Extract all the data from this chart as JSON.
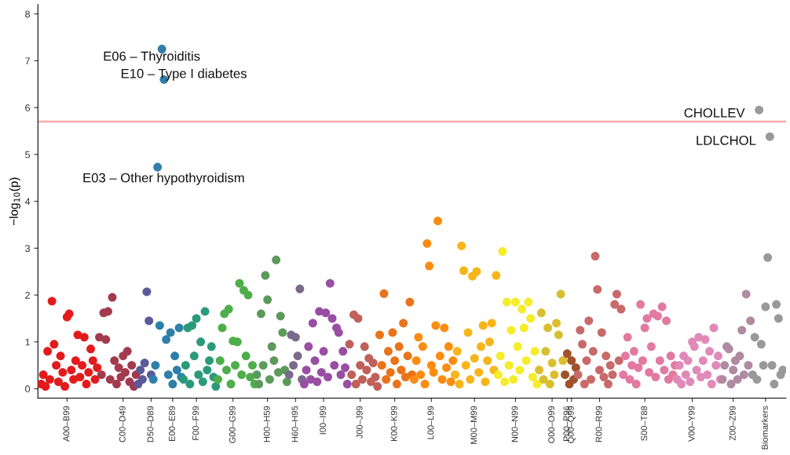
{
  "chart_data": {
    "type": "scatter",
    "ylabel": "−log$_{10}$(p)",
    "marker": "circle",
    "grid": false,
    "legend": false,
    "ylim": [
      -0.2,
      8.2
    ],
    "yticks": [
      0,
      1,
      2,
      3,
      4,
      5,
      6,
      7,
      8
    ],
    "ref_lines": [
      {
        "axis": "y",
        "value": 5.7,
        "color": "#ffaaaa"
      }
    ],
    "annotations": [
      "E06 – Thyroiditis",
      "E10 – Type I diabetes",
      "E03 – Other hypothyroidism",
      "CHOLLEV",
      "LDLCHOL"
    ],
    "categories": [
      null,
      null,
      null,
      null,
      null,
      null,
      null,
      null,
      null,
      null,
      null,
      null,
      "A00–B99",
      null,
      null,
      null,
      null,
      null,
      null,
      null,
      null,
      null,
      null,
      null,
      null,
      null,
      null,
      null,
      null,
      null,
      null,
      null,
      null,
      null,
      null,
      null,
      null,
      null,
      "C00–D49",
      null,
      null,
      null,
      null,
      null,
      null,
      null,
      null,
      null,
      null,
      null,
      null,
      "D50–D89",
      null,
      null,
      null,
      null,
      null,
      null,
      null,
      null,
      null,
      "E00–E89",
      null,
      null,
      null,
      null,
      null,
      null,
      null,
      null,
      null,
      null,
      "F00–F99",
      null,
      null,
      null,
      null,
      null,
      null,
      null,
      null,
      null,
      null,
      null,
      null,
      null,
      null,
      null,
      null,
      "G00–G99",
      null,
      null,
      null,
      null,
      null,
      null,
      null,
      null,
      null,
      null,
      null,
      null,
      null,
      null,
      null,
      "H00–H59",
      null,
      null,
      null,
      null,
      null,
      null,
      null,
      null,
      null,
      null,
      null,
      null,
      "H60–H95",
      null,
      null,
      null,
      null,
      null,
      null,
      null,
      null,
      null,
      null,
      null,
      null,
      "I00–I99",
      null,
      null,
      null,
      null,
      null,
      null,
      null,
      null,
      null,
      null,
      null,
      null,
      null,
      null,
      null,
      null,
      "J00–J99",
      null,
      null,
      null,
      null,
      null,
      null,
      null,
      null,
      null,
      null,
      null,
      null,
      null,
      null,
      null,
      "K00–K99",
      null,
      null,
      null,
      null,
      null,
      null,
      null,
      null,
      null,
      null,
      null,
      null,
      null,
      null,
      null,
      null,
      "L00–L99",
      null,
      null,
      null,
      null,
      null,
      null,
      null,
      null,
      null,
      null,
      null,
      null,
      null,
      null,
      null,
      null,
      null,
      null,
      null,
      "M00–M99",
      null,
      null,
      null,
      null,
      null,
      null,
      null,
      null,
      null,
      null,
      null,
      null,
      null,
      null,
      null,
      null,
      null,
      null,
      "N00–N99",
      null,
      null,
      null,
      null,
      null,
      null,
      null,
      null,
      null,
      null,
      null,
      null,
      null,
      null,
      null,
      null,
      "O00–O99",
      null,
      null,
      null,
      null,
      null,
      null,
      "P00–P96",
      null,
      "Q00–Q99",
      null,
      null,
      null,
      null,
      null,
      null,
      null,
      null,
      null,
      null,
      null,
      null,
      "R00–R99",
      null,
      null,
      null,
      null,
      null,
      null,
      null,
      null,
      null,
      null,
      null,
      null,
      null,
      null,
      null,
      null,
      null,
      null,
      null,
      null,
      "S00–T88",
      null,
      null,
      null,
      null,
      null,
      null,
      null,
      null,
      null,
      null,
      null,
      null,
      null,
      null,
      null,
      null,
      null,
      null,
      null,
      null,
      null,
      "V00–Y99",
      null,
      null,
      null,
      null,
      null,
      null,
      null,
      null,
      null,
      null,
      null,
      null,
      null,
      null,
      null,
      null,
      null,
      null,
      "Z00–Z99",
      null,
      null,
      null,
      null,
      null,
      null,
      null,
      null,
      null,
      null,
      null,
      null,
      null,
      null,
      "Biomarkers",
      null,
      null,
      null,
      null,
      null,
      null,
      null,
      null
    ],
    "series": [
      {
        "values": [
          0.1,
          0.3,
          0.05,
          0.8,
          0.2,
          1.87,
          0.95,
          0.5,
          0.15,
          0.7,
          0.35,
          0.05,
          1.53,
          1.6,
          0.4,
          0.2,
          0.6,
          1.15,
          0.25,
          0.5,
          1.1,
          0.1,
          0.35,
          0.85,
          0.6,
          0.2,
          0.45,
          1.1,
          0.3,
          1.62,
          1.05,
          1.65,
          0.2,
          1.95,
          0.6,
          0.1,
          0.45,
          0.25,
          0.7,
          0.35,
          0.8,
          0.15,
          0.5,
          0.05,
          0.3,
          0.1,
          0.4,
          0.2,
          0.55,
          2.07,
          1.45,
          0.3,
          0.2,
          0.5,
          4.73,
          1.35,
          7.25,
          6.6,
          1.05,
          0.3,
          1.2,
          0.1,
          0.7,
          0.4,
          1.3,
          0.25,
          0.2,
          0.5,
          1.3,
          0.1,
          1.35,
          0.7,
          1.5,
          0.3,
          1.0,
          0.15,
          1.65,
          0.4,
          0.6,
          0.9,
          0.25,
          0.05,
          0.2,
          0.6,
          1.3,
          1.6,
          0.4,
          1.7,
          0.1,
          1.02,
          0.5,
          1.0,
          2.25,
          0.3,
          2.1,
          0.7,
          2.0,
          0.25,
          0.5,
          0.1,
          0.3,
          0.1,
          1.6,
          0.5,
          2.42,
          1.9,
          0.2,
          0.9,
          0.6,
          2.75,
          0.35,
          1.55,
          1.2,
          0.4,
          0.15,
          0.3,
          1.15,
          0.5,
          1.1,
          0.7,
          2.13,
          0.2,
          0.1,
          0.4,
          0.9,
          0.2,
          1.4,
          0.6,
          0.15,
          1.65,
          0.35,
          0.8,
          1.62,
          0.25,
          2.25,
          1.5,
          0.5,
          1.3,
          1.2,
          0.3,
          0.8,
          0.45,
          0.1,
          0.95,
          0.3,
          1.58,
          0.1,
          1.5,
          0.5,
          0.2,
          0.9,
          0.4,
          0.65,
          0.15,
          0.55,
          0.25,
          0.05,
          1.15,
          0.5,
          2.03,
          0.2,
          0.8,
          0.35,
          1.2,
          0.6,
          0.1,
          0.9,
          0.4,
          1.4,
          0.25,
          0.7,
          1.85,
          0.3,
          0.2,
          0.6,
          1.1,
          0.3,
          0.9,
          0.1,
          3.1,
          2.62,
          0.5,
          0.35,
          1.35,
          3.58,
          0.7,
          0.2,
          1.3,
          0.45,
          0.9,
          0.15,
          0.6,
          0.3,
          0.8,
          0.1,
          3.05,
          2.52,
          0.5,
          1.2,
          0.2,
          2.4,
          0.65,
          2.5,
          0.35,
          0.9,
          1.35,
          0.15,
          0.6,
          1.0,
          1.4,
          0.4,
          2.42,
          0.3,
          0.7,
          2.93,
          0.15,
          1.85,
          0.5,
          1.25,
          0.2,
          1.85,
          0.9,
          0.4,
          1.7,
          1.3,
          0.6,
          1.85,
          1.5,
          0.25,
          0.8,
          0.1,
          0.4,
          1.62,
          0.2,
          0.8,
          1.3,
          0.1,
          0.55,
          0.3,
          1.4,
          1.15,
          2.02,
          0.6,
          0.3,
          0.75,
          0.1,
          0.6,
          0.2,
          0.45,
          0.3,
          1.25,
          0.95,
          0.1,
          0.6,
          1.45,
          0.2,
          0.8,
          2.83,
          2.12,
          0.4,
          1.2,
          0.25,
          0.7,
          0.1,
          0.5,
          0.3,
          1.8,
          2.02,
          0.6,
          1.7,
          0.3,
          0.7,
          1.1,
          0.2,
          0.5,
          0.8,
          0.1,
          0.45,
          1.8,
          0.6,
          1.3,
          1.5,
          0.35,
          0.9,
          1.6,
          0.25,
          1.55,
          0.6,
          1.75,
          0.4,
          1.45,
          0.2,
          0.7,
          0.3,
          0.5,
          0.2,
          0.5,
          0.1,
          0.7,
          0.3,
          0.6,
          0.15,
          1.0,
          0.9,
          0.4,
          1.1,
          0.25,
          0.6,
          1.05,
          0.3,
          0.8,
          0.1,
          1.3,
          0.5,
          0.7,
          0.2,
          0.2,
          0.5,
          0.9,
          0.85,
          0.1,
          0.4,
          0.6,
          0.2,
          0.7,
          1.25,
          0.3,
          2.02,
          0.5,
          1.45,
          0.3,
          1.1,
          0.2,
          5.95,
          0.95,
          0.5,
          1.75,
          2.8,
          5.38,
          0.5,
          0.1,
          1.8,
          1.5,
          0.3,
          0.4
        ],
        "colors": [
          "#e31a1c",
          "#e31a1c",
          "#e31a1c",
          "#e31a1c",
          "#e31a1c",
          "#e31a1c",
          "#e31a1c",
          "#e31a1c",
          "#e31a1c",
          "#e31a1c",
          "#e31a1c",
          "#e31a1c",
          "#e31a1c",
          "#e31a1c",
          "#e31a1c",
          "#e31a1c",
          "#e31a1c",
          "#e31a1c",
          "#e31a1c",
          "#e31a1c",
          "#e31a1c",
          "#e31a1c",
          "#e31a1c",
          "#e31a1c",
          "#e31a1c",
          "#e31a1c",
          "#e31a1c",
          "#a33b4e",
          "#a33b4e",
          "#a33b4e",
          "#a33b4e",
          "#a33b4e",
          "#a33b4e",
          "#a33b4e",
          "#a33b4e",
          "#a33b4e",
          "#a33b4e",
          "#a33b4e",
          "#a33b4e",
          "#a33b4e",
          "#a33b4e",
          "#a33b4e",
          "#a33b4e",
          "#a33b4e",
          "#a33b4e",
          "#5a5a9a",
          "#5a5a9a",
          "#5a5a9a",
          "#5a5a9a",
          "#5a5a9a",
          "#5a5a9a",
          "#5a5a9a",
          "#2f7fa8",
          "#2f7fa8",
          "#2f7fa8",
          "#2f7fa8",
          "#2f7fa8",
          "#2f7fa8",
          "#2f7fa8",
          "#2f7fa8",
          "#2f7fa8",
          "#2f7fa8",
          "#2f7fa8",
          "#2f7fa8",
          "#2f7fa8",
          "#2f7fa8",
          "#2a9a7a",
          "#2a9a7a",
          "#2a9a7a",
          "#2a9a7a",
          "#2a9a7a",
          "#2a9a7a",
          "#2a9a7a",
          "#2a9a7a",
          "#2a9a7a",
          "#2a9a7a",
          "#2a9a7a",
          "#2a9a7a",
          "#2a9a7a",
          "#2a9a7a",
          "#2a9a7a",
          "#2a9a7a",
          "#4dae4a",
          "#4dae4a",
          "#4dae4a",
          "#4dae4a",
          "#4dae4a",
          "#4dae4a",
          "#4dae4a",
          "#4dae4a",
          "#4dae4a",
          "#4dae4a",
          "#4dae4a",
          "#4dae4a",
          "#4dae4a",
          "#4dae4a",
          "#4dae4a",
          "#4dae4a",
          "#4dae4a",
          "#4dae4a",
          "#5c9a5c",
          "#5c9a5c",
          "#5c9a5c",
          "#5c9a5c",
          "#5c9a5c",
          "#5c9a5c",
          "#5c9a5c",
          "#5c9a5c",
          "#5c9a5c",
          "#5c9a5c",
          "#5c9a5c",
          "#5c9a5c",
          "#5c9a5c",
          "#5c9a5c",
          "#5c9a5c",
          "#7a6a8a",
          "#7a6a8a",
          "#7a6a8a",
          "#7a6a8a",
          "#7a6a8a",
          "#7a6a8a",
          "#7a6a8a",
          "#984ea3",
          "#984ea3",
          "#984ea3",
          "#984ea3",
          "#984ea3",
          "#984ea3",
          "#984ea3",
          "#984ea3",
          "#984ea3",
          "#984ea3",
          "#984ea3",
          "#984ea3",
          "#984ea3",
          "#984ea3",
          "#984ea3",
          "#984ea3",
          "#984ea3",
          "#984ea3",
          "#984ea3",
          "#984ea3",
          "#984ea3",
          "#c0605a",
          "#c0605a",
          "#c0605a",
          "#c0605a",
          "#c0605a",
          "#c0605a",
          "#c0605a",
          "#c0605a",
          "#c0605a",
          "#c0605a",
          "#c0605a",
          "#c0605a",
          "#c0605a",
          "#c0605a",
          "#e8731a",
          "#e8731a",
          "#e8731a",
          "#e8731a",
          "#e8731a",
          "#e8731a",
          "#e8731a",
          "#e8731a",
          "#e8731a",
          "#e8731a",
          "#e8731a",
          "#e8731a",
          "#e8731a",
          "#e8731a",
          "#e8731a",
          "#e8731a",
          "#fb8c0f",
          "#fb8c0f",
          "#fb8c0f",
          "#fb8c0f",
          "#fb8c0f",
          "#fb8c0f",
          "#fb8c0f",
          "#fb8c0f",
          "#fb8c0f",
          "#fb8c0f",
          "#fb8c0f",
          "#fb8c0f",
          "#fb8c0f",
          "#fb8c0f",
          "#fb8c0f",
          "#fb8c0f",
          "#fb8c0f",
          "#fb8c0f",
          "#fb8c0f",
          "#f7b51a",
          "#f7b51a",
          "#f7b51a",
          "#f7b51a",
          "#f7b51a",
          "#f7b51a",
          "#f7b51a",
          "#f7b51a",
          "#f7b51a",
          "#f7b51a",
          "#f7b51a",
          "#f7b51a",
          "#f7b51a",
          "#f7b51a",
          "#f7b51a",
          "#f7b51a",
          "#f7b51a",
          "#f7b51a",
          "#f7b51a",
          "#f7b51a",
          "#f5ec2a",
          "#f5ec2a",
          "#f5ec2a",
          "#f5ec2a",
          "#f5ec2a",
          "#f5ec2a",
          "#f5ec2a",
          "#f5ec2a",
          "#f5ec2a",
          "#f5ec2a",
          "#f5ec2a",
          "#f5ec2a",
          "#f5ec2a",
          "#f5ec2a",
          "#f5ec2a",
          "#f5ec2a",
          "#f5ec2a",
          "#f5ec2a",
          "#f5ec2a",
          "#d9bf30",
          "#d9bf30",
          "#d9bf30",
          "#d9bf30",
          "#d9bf30",
          "#d9bf30",
          "#d9bf30",
          "#d9bf30",
          "#d9bf30",
          "#d9bf30",
          "#d9bf30",
          "#d9bf30",
          "#a0522d",
          "#a0522d",
          "#a0522d",
          "#a0522d",
          "#a0522d",
          "#a0522d",
          "#c86a6a",
          "#c86a6a",
          "#c86a6a",
          "#c86a6a",
          "#c86a6a",
          "#c86a6a",
          "#c86a6a",
          "#c86a6a",
          "#c86a6a",
          "#c86a6a",
          "#c86a6a",
          "#c86a6a",
          "#c86a6a",
          "#c86a6a",
          "#c86a6a",
          "#c86a6a",
          "#c86a6a",
          "#c86a6a",
          "#c86a6a",
          "#c86a6a",
          "#c86a6a",
          "#e27aa0",
          "#e27aa0",
          "#e27aa0",
          "#e27aa0",
          "#e27aa0",
          "#e27aa0",
          "#e27aa0",
          "#e27aa0",
          "#e27aa0",
          "#e27aa0",
          "#e27aa0",
          "#e27aa0",
          "#e27aa0",
          "#e27aa0",
          "#e27aa0",
          "#e27aa0",
          "#e27aa0",
          "#e27aa0",
          "#e27aa0",
          "#e27aa0",
          "#e27aa0",
          "#e27aa0",
          "#e27aa0",
          "#e27aa0",
          "#e27aa0",
          "#e08ab8",
          "#e08ab8",
          "#e08ab8",
          "#e08ab8",
          "#e08ab8",
          "#e08ab8",
          "#e08ab8",
          "#e08ab8",
          "#e08ab8",
          "#e08ab8",
          "#e08ab8",
          "#e08ab8",
          "#e08ab8",
          "#e08ab8",
          "#e08ab8",
          "#e08ab8",
          "#e08ab8",
          "#e08ab8",
          "#e08ab8",
          "#e08ab8",
          "#e08ab8",
          "#b08aa0",
          "#b08aa0",
          "#b08aa0",
          "#b08aa0",
          "#b08aa0",
          "#b08aa0",
          "#b08aa0",
          "#b08aa0",
          "#b08aa0",
          "#b08aa0",
          "#b08aa0",
          "#b08aa0",
          "#b08aa0",
          "#b08aa0",
          "#999999",
          "#999999",
          "#999999",
          "#999999",
          "#999999",
          "#999999",
          "#999999",
          "#999999",
          "#999999",
          "#999999",
          "#999999",
          "#999999",
          "#999999",
          "#999999",
          "#999999"
        ]
      }
    ]
  }
}
